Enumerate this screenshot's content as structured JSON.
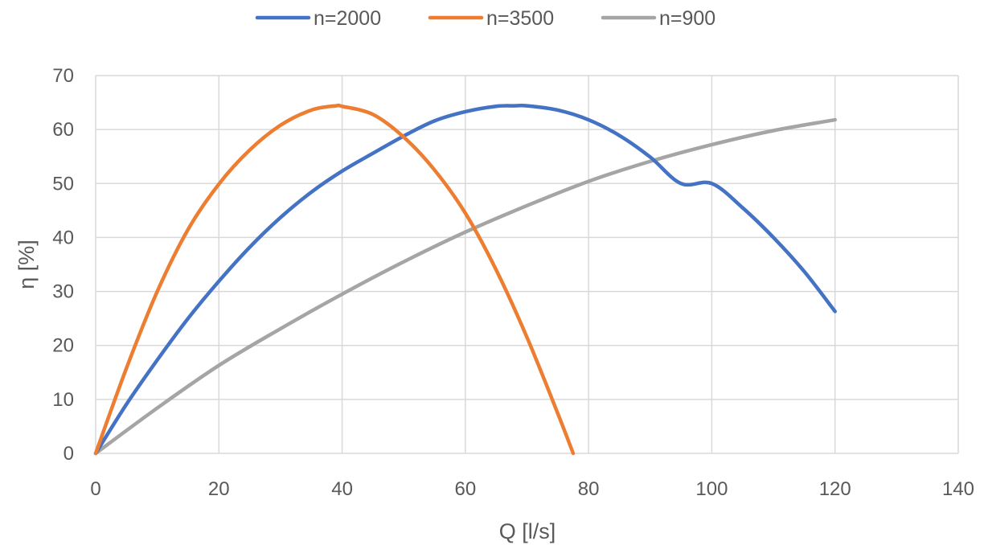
{
  "chart_data": {
    "type": "line",
    "title": "",
    "xlabel": "Q [l/s]",
    "ylabel": "η [%]",
    "xlim": [
      0,
      140
    ],
    "ylim": [
      0,
      70
    ],
    "xticks": [
      0,
      20,
      40,
      60,
      80,
      100,
      120,
      140
    ],
    "yticks": [
      0,
      10,
      20,
      30,
      40,
      50,
      60,
      70
    ],
    "grid": true,
    "legend_position": "top",
    "series": [
      {
        "name": "n=2000",
        "color": "#4472C4",
        "x": [
          0,
          5,
          10,
          15,
          20,
          25,
          30,
          35,
          40,
          45,
          50,
          55,
          60,
          65,
          68,
          70,
          75,
          80,
          85,
          90,
          95,
          100,
          105,
          110,
          115,
          120
        ],
        "y": [
          0,
          9.1,
          17.3,
          25.0,
          31.9,
          38.2,
          43.7,
          48.4,
          52.3,
          55.6,
          58.8,
          61.6,
          63.3,
          64.3,
          64.4,
          64.4,
          63.6,
          61.8,
          58.9,
          54.9,
          50.0,
          50.0,
          45.5,
          40.0,
          33.7,
          26.3
        ]
      },
      {
        "name": "n=3500",
        "color": "#ED7D31",
        "x": [
          0,
          5,
          10,
          15,
          20,
          25,
          30,
          35,
          39,
          40,
          45,
          50,
          55,
          60,
          65,
          70,
          75,
          77.5
        ],
        "y": [
          0,
          15.8,
          30.0,
          41.5,
          49.9,
          56.2,
          60.8,
          63.6,
          64.4,
          64.3,
          62.8,
          58.6,
          52.5,
          44.5,
          34.0,
          21.5,
          7.4,
          0
        ]
      },
      {
        "name": "n=900",
        "color": "#A5A5A5",
        "x": [
          0,
          10,
          20,
          30,
          40,
          50,
          60,
          70,
          80,
          90,
          100,
          110,
          120
        ],
        "y": [
          0,
          8.4,
          16.3,
          23.1,
          29.5,
          35.5,
          41.0,
          45.9,
          50.4,
          54.1,
          57.2,
          59.8,
          61.8
        ]
      }
    ]
  }
}
